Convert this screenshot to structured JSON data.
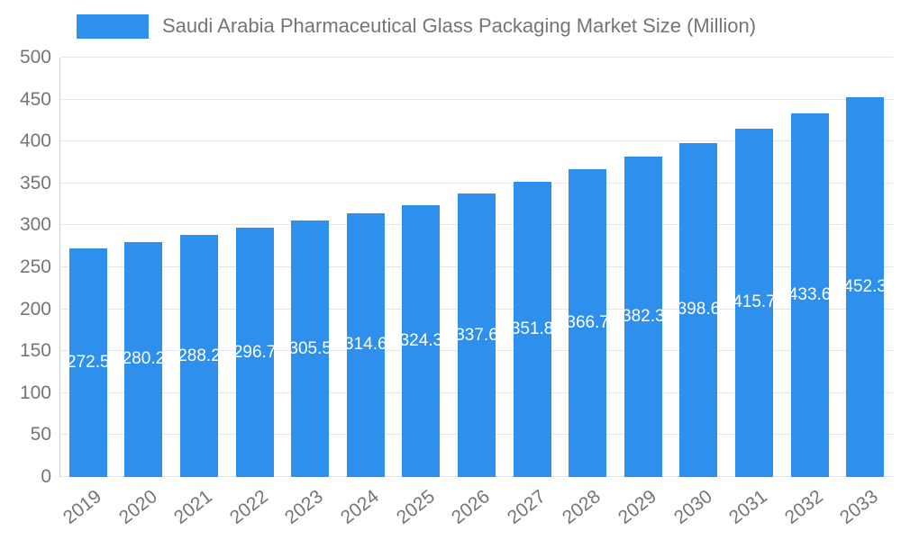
{
  "title": "Saudi Arabia Pharmaceutical Glass Packaging Market Size (Million)",
  "colors": {
    "bar": "#2f8fec",
    "title_text": "#757575",
    "axis_text": "#757575",
    "grid": "#e3e6ea",
    "value_label_text": "#ffffff"
  },
  "legend": {
    "swatch": "bar-series-swatch",
    "label": "Saudi Arabia Pharmaceutical Glass Packaging Market Size (Million)"
  },
  "chart_data": {
    "type": "bar",
    "title": "Saudi Arabia Pharmaceutical Glass Packaging Market Size (Million)",
    "categories": [
      "2019",
      "2020",
      "2021",
      "2022",
      "2023",
      "2024",
      "2025",
      "2026",
      "2027",
      "2028",
      "2029",
      "2030",
      "2031",
      "2032",
      "2033"
    ],
    "values": [
      272.5,
      280.2,
      288.2,
      296.7,
      305.5,
      314.6,
      324.3,
      337.6,
      351.8,
      366.7,
      382.3,
      398.6,
      415.7,
      433.6,
      452.3
    ],
    "value_labels": [
      "272.5",
      "280.2",
      "288.2",
      "296.7",
      "305.5",
      "314.6",
      "324.3",
      "337.6",
      "351.8",
      "366.7",
      "382.3",
      "398.6",
      "415.7",
      "433.6",
      "452.3"
    ],
    "xlabel": "",
    "ylabel": "",
    "ylim": [
      0,
      500
    ],
    "yticks": [
      0,
      50,
      100,
      150,
      200,
      250,
      300,
      350,
      400,
      450,
      500
    ],
    "grid": true,
    "legend_position": "top",
    "value_label_position": "center-of-bar"
  }
}
